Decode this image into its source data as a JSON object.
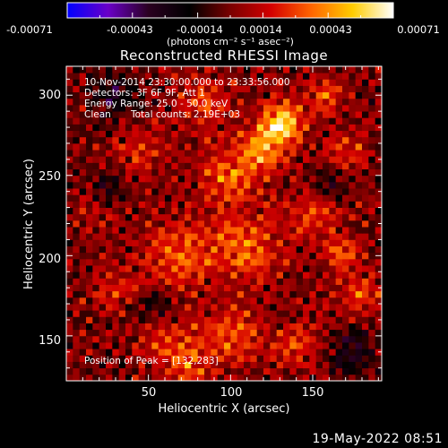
{
  "colorbar": {
    "tick_labels": [
      "-0.00071",
      "-0.00043",
      "-0.00014",
      "0.00014",
      "0.00043",
      "0.00071"
    ],
    "unit_label": "(photons cm⁻² s⁻¹ asec⁻²)",
    "range": [
      -0.00071,
      0.00071
    ],
    "colors": [
      "#0000ff",
      "#6a00c8",
      "#2a0020",
      "#000000",
      "#7a0000",
      "#d40000",
      "#ff6600",
      "#ffcc00",
      "#ffffff"
    ]
  },
  "chart_data": {
    "type": "heatmap",
    "title": "Reconstructed RHESSI Image",
    "xlabel": "Heliocentric X (arcsec)",
    "ylabel": "Heliocentric Y (arcsec)",
    "xlim": [
      0,
      192
    ],
    "ylim": [
      122,
      318
    ],
    "x_ticks": [
      50,
      100,
      150
    ],
    "y_ticks": [
      150,
      200,
      250,
      300
    ],
    "peak": [
      132,
      283
    ],
    "annotations": {
      "time_range": "10-Nov-2014 23:30:00.000 to 23:33:56.000",
      "detectors": "Detectors: 3F 6F 9F, Att 1",
      "energy_range": "Energy Range: 25.0 - 50.0 keV",
      "method": "Clean",
      "total_counts": "Total counts: 2.19E+03",
      "peak_label": "Position of Peak = [132,283]"
    }
  },
  "footer": {
    "date": "19-May-2022 08:51"
  }
}
